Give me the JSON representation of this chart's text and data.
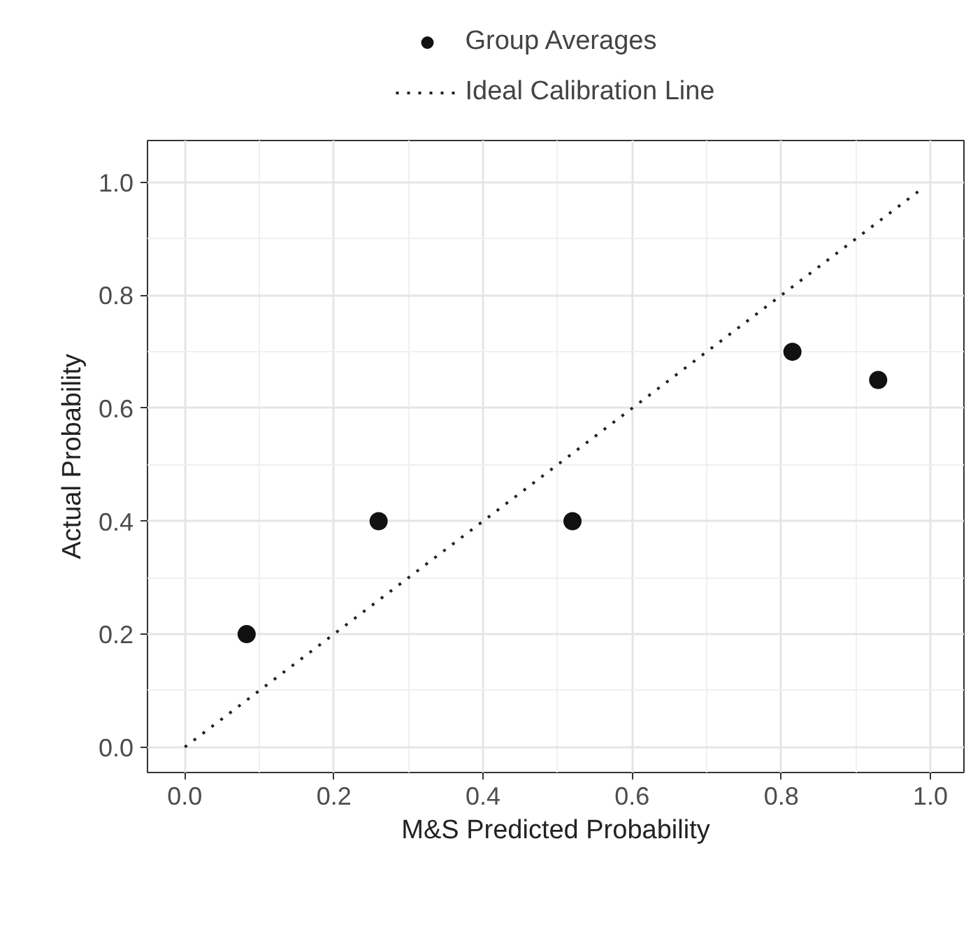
{
  "chart_data": {
    "type": "scatter",
    "xlabel": "M&S Predicted Probability",
    "ylabel": "Actual Probability",
    "xlim": [
      -0.05,
      1.045
    ],
    "ylim": [
      -0.045,
      1.074
    ],
    "xticks": [
      {
        "value": 0,
        "label": "0.0"
      },
      {
        "value": 0.2,
        "label": "0.2"
      },
      {
        "value": 0.4,
        "label": "0.4"
      },
      {
        "value": 0.6,
        "label": "0.6"
      },
      {
        "value": 0.8,
        "label": "0.8"
      },
      {
        "value": 1,
        "label": "1.0"
      }
    ],
    "yticks": [
      {
        "value": 0,
        "label": "0.0"
      },
      {
        "value": 0.2,
        "label": "0.2"
      },
      {
        "value": 0.4,
        "label": "0.4"
      },
      {
        "value": 0.6,
        "label": "0.6"
      },
      {
        "value": 0.8,
        "label": "0.8"
      },
      {
        "value": 1,
        "label": "1.0"
      }
    ],
    "grid": true,
    "legend": "top",
    "marker": "circle",
    "series": [
      {
        "name": "Group Averages",
        "color": "#111111",
        "x": [
          0.083,
          0.26,
          0.52,
          0.815,
          0.93
        ],
        "values": [
          0.2,
          0.4,
          0.4,
          0.7,
          0.65
        ]
      },
      {
        "name": "Ideal Calibration Line",
        "type": "line",
        "line_style": "dotted",
        "marker": "none",
        "color": "#222222",
        "x": [
          0,
          0.985
        ],
        "values": [
          0,
          0.985
        ]
      }
    ]
  }
}
